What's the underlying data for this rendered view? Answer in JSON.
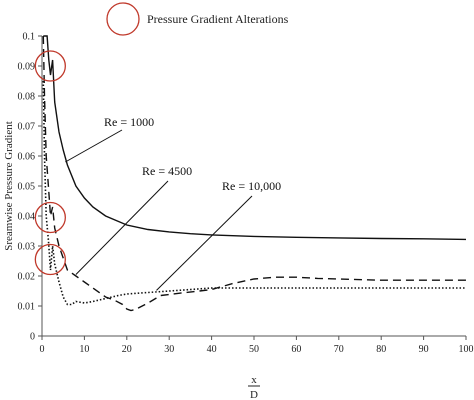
{
  "chart_data": {
    "type": "line",
    "title": "",
    "legend": {
      "label": "Pressure Gradient Alterations",
      "marker": "open-circle",
      "color": "#c0392b",
      "placement": "top"
    },
    "xlabel_numerator": "x",
    "xlabel_denominator": "D",
    "ylabel": "Sreamwise Pressure Gradient",
    "xlim": [
      0,
      100
    ],
    "ylim": [
      0,
      0.1
    ],
    "x_ticks": [
      0,
      10,
      20,
      30,
      40,
      50,
      60,
      70,
      80,
      90,
      100
    ],
    "x_tick_labels": [
      "0",
      "10",
      "20",
      "30",
      "40",
      "50",
      "60",
      "70",
      "80",
      "90",
      "100"
    ],
    "y_ticks": [
      0,
      0.01,
      0.02,
      0.03,
      0.04,
      0.05,
      0.06,
      0.07,
      0.08,
      0.09,
      0.1
    ],
    "y_tick_labels": [
      "0",
      "0.01",
      "0.02",
      "0.03",
      "0.04",
      "0.05",
      "0.06",
      "0.07",
      "0.08",
      "0.09",
      "0.1"
    ],
    "grid": false,
    "series": [
      {
        "name": "Re = 1000",
        "style": "solid",
        "x": [
          0.3,
          0.8,
          1.2,
          1.6,
          2.0,
          2.5,
          3.0,
          4,
          5,
          6,
          8,
          10,
          12,
          15,
          20,
          25,
          30,
          35,
          40,
          50,
          60,
          70,
          80,
          90,
          100
        ],
        "y": [
          0.1,
          0.1,
          0.1,
          0.092,
          0.087,
          0.092,
          0.078,
          0.068,
          0.062,
          0.057,
          0.05,
          0.046,
          0.043,
          0.04,
          0.037,
          0.0355,
          0.0347,
          0.0341,
          0.0337,
          0.0332,
          0.0329,
          0.0327,
          0.0325,
          0.0324,
          0.0322
        ]
      },
      {
        "name": "Re = 4500",
        "style": "dashed",
        "x": [
          0.3,
          0.6,
          1.0,
          1.5,
          2.0,
          2.5,
          3.0,
          4,
          5,
          6,
          7,
          8,
          10,
          12,
          15,
          17,
          19,
          20,
          21,
          22,
          25,
          28,
          32,
          36,
          40,
          45,
          50,
          55,
          60,
          65,
          70,
          80,
          90,
          100
        ],
        "y": [
          0.1,
          0.08,
          0.06,
          0.05,
          0.04,
          0.043,
          0.036,
          0.03,
          0.026,
          0.022,
          0.021,
          0.02,
          0.018,
          0.016,
          0.013,
          0.012,
          0.0105,
          0.009,
          0.0085,
          0.0088,
          0.011,
          0.0135,
          0.0142,
          0.0148,
          0.0155,
          0.0175,
          0.019,
          0.0196,
          0.0196,
          0.0192,
          0.019,
          0.0186,
          0.0186,
          0.0186
        ]
      },
      {
        "name": "Re = 10,000",
        "style": "dotted",
        "x": [
          0.3,
          0.6,
          1.0,
          1.5,
          2.0,
          2.5,
          3.0,
          4,
          5,
          6,
          7,
          8,
          10,
          12,
          15,
          18,
          20,
          25,
          30,
          35,
          40,
          50,
          60,
          70,
          80,
          90,
          100
        ],
        "y": [
          0.085,
          0.06,
          0.04,
          0.032,
          0.022,
          0.03,
          0.024,
          0.018,
          0.013,
          0.0105,
          0.0105,
          0.0115,
          0.011,
          0.0115,
          0.0125,
          0.0135,
          0.014,
          0.0145,
          0.015,
          0.0155,
          0.016,
          0.016,
          0.016,
          0.016,
          0.016,
          0.016,
          0.016
        ]
      }
    ],
    "annotations": [
      {
        "text": "Re = 1000",
        "series": "Re = 1000",
        "x": 5.5,
        "y": 0.058
      },
      {
        "text": "Re = 4500",
        "series": "Re = 4500",
        "x": 8,
        "y": 0.0205
      },
      {
        "text": "Re = 10,000",
        "series": "Re = 10,000",
        "x": 27,
        "y": 0.0152
      }
    ],
    "highlighted_regions": [
      {
        "x": 2.2,
        "y": 0.09
      },
      {
        "x": 2.2,
        "y": 0.0395
      },
      {
        "x": 2.2,
        "y": 0.0255
      }
    ]
  }
}
